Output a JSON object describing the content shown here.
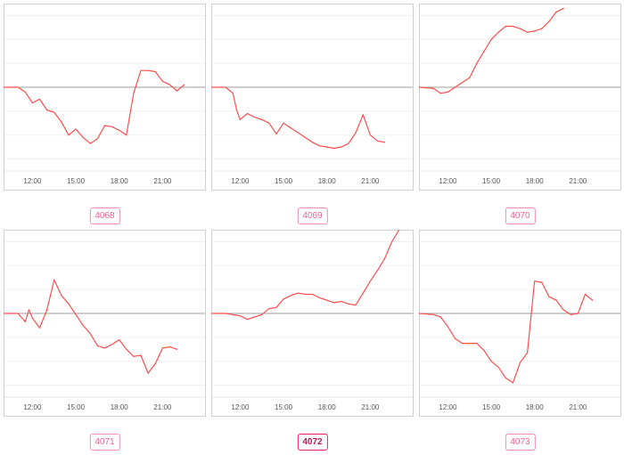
{
  "colors": {
    "line": "#ff4d4d",
    "zero": "#9e9e9e",
    "grid": "#f0f0f0",
    "frame": "#d0d0d0",
    "label": "#555555"
  },
  "x_ticks": [
    "12:00",
    "15:00",
    "18:00",
    "21:00"
  ],
  "chart_data": [
    {
      "type": "line",
      "badge": "4068",
      "x": [
        "10:00",
        "10:30",
        "11:00",
        "11:15",
        "11:30",
        "12:00",
        "12:30",
        "13:00",
        "13:30",
        "14:00",
        "14:30",
        "15:00",
        "15:30",
        "16:00",
        "16:30",
        "17:00",
        "17:30",
        "18:00",
        "18:30",
        "19:00",
        "19:30",
        "20:00",
        "20:30",
        "21:00",
        "21:30",
        "22:00",
        "22:30"
      ],
      "y": [
        0,
        0,
        0,
        -0.2,
        -0.4,
        -1.3,
        -1.0,
        -1.9,
        -2.1,
        -2.9,
        -4.0,
        -3.5,
        -4.2,
        -4.7,
        -4.3,
        -3.2,
        -3.3,
        -3.6,
        -4.0,
        -0.5,
        1.4,
        1.4,
        1.3,
        0.5,
        0.2,
        -0.3,
        0.2
      ],
      "ylim": [
        -7,
        7
      ]
    },
    {
      "type": "line",
      "badge": "4069",
      "x": [
        "10:00",
        "11:00",
        "11:30",
        "11:45",
        "12:00",
        "12:30",
        "13:00",
        "13:30",
        "14:00",
        "14:30",
        "15:00",
        "15:30",
        "16:00",
        "16:30",
        "17:00",
        "17:30",
        "18:00",
        "18:30",
        "19:00",
        "19:30",
        "20:00",
        "20:30",
        "21:00",
        "21:30",
        "22:00"
      ],
      "y": [
        0,
        0,
        -0.5,
        -1.9,
        -2.7,
        -2.2,
        -2.5,
        -2.7,
        -3.0,
        -3.9,
        -3.0,
        -3.4,
        -3.8,
        -4.2,
        -4.6,
        -4.9,
        -5.0,
        -5.1,
        -5.0,
        -4.7,
        -3.8,
        -2.3,
        -4.0,
        -4.5,
        -4.6
      ],
      "ylim": [
        -7,
        7
      ]
    },
    {
      "type": "line",
      "badge": "4070",
      "x": [
        "10:00",
        "11:00",
        "11:30",
        "12:00",
        "12:30",
        "13:00",
        "13:30",
        "14:00",
        "14:30",
        "15:00",
        "15:30",
        "16:00",
        "16:30",
        "17:00",
        "17:30",
        "18:00",
        "18:30",
        "19:00",
        "19:30",
        "20:00"
      ],
      "y": [
        0,
        -0.1,
        -0.5,
        -0.4,
        0,
        0.4,
        0.8,
        2.0,
        3.0,
        4.0,
        4.6,
        5.1,
        5.1,
        4.9,
        4.6,
        4.7,
        4.9,
        5.5,
        6.3,
        6.6
      ],
      "ylim": [
        -7,
        7
      ]
    },
    {
      "type": "line",
      "badge": "4071",
      "x": [
        "10:00",
        "11:00",
        "11:30",
        "11:45",
        "12:00",
        "12:30",
        "13:00",
        "13:30",
        "14:00",
        "14:30",
        "15:00",
        "15:30",
        "16:00",
        "16:30",
        "17:00",
        "17:30",
        "18:00",
        "18:30",
        "19:00",
        "19:30",
        "20:00",
        "20:30",
        "21:00",
        "21:30",
        "22:00"
      ],
      "y": [
        0,
        0,
        -0.7,
        0.3,
        -0.4,
        -1.2,
        0.3,
        2.8,
        1.5,
        0.8,
        -0.1,
        -1.0,
        -1.7,
        -2.7,
        -2.9,
        -2.6,
        -2.2,
        -3.0,
        -3.6,
        -3.5,
        -5.0,
        -4.2,
        -2.9,
        -2.8,
        -3.0
      ],
      "ylim": [
        -7,
        7
      ]
    },
    {
      "type": "line",
      "badge": "4072",
      "active": true,
      "x": [
        "10:00",
        "11:00",
        "12:00",
        "12:30",
        "13:00",
        "13:30",
        "14:00",
        "14:30",
        "15:00",
        "15:30",
        "16:00",
        "16:30",
        "17:00",
        "17:30",
        "18:00",
        "18:30",
        "19:00",
        "19:30",
        "20:00",
        "20:30",
        "21:00",
        "21:30",
        "22:00",
        "22:30",
        "23:00"
      ],
      "y": [
        0,
        0,
        -0.2,
        -0.5,
        -0.3,
        -0.1,
        0.4,
        0.5,
        1.2,
        1.5,
        1.7,
        1.6,
        1.6,
        1.3,
        1.1,
        0.9,
        1.0,
        0.8,
        0.7,
        1.7,
        2.7,
        3.6,
        4.6,
        6.0,
        7.0
      ],
      "ylim": [
        -7,
        7
      ]
    },
    {
      "type": "line",
      "badge": "4073",
      "x": [
        "10:00",
        "11:00",
        "11:30",
        "12:00",
        "12:30",
        "13:00",
        "13:30",
        "14:00",
        "14:30",
        "15:00",
        "15:30",
        "16:00",
        "16:30",
        "17:00",
        "17:30",
        "18:00",
        "18:30",
        "19:00",
        "19:30",
        "20:00",
        "20:30",
        "21:00",
        "21:30",
        "22:00"
      ],
      "y": [
        0,
        -0.1,
        -0.3,
        -1.1,
        -2.1,
        -2.5,
        -2.5,
        -2.5,
        -3.1,
        -4.0,
        -4.5,
        -5.4,
        -5.8,
        -4.1,
        -3.3,
        2.7,
        2.6,
        1.4,
        1.1,
        0.3,
        -0.1,
        0,
        1.6,
        1.1
      ],
      "ylim": [
        -7,
        7
      ]
    }
  ]
}
